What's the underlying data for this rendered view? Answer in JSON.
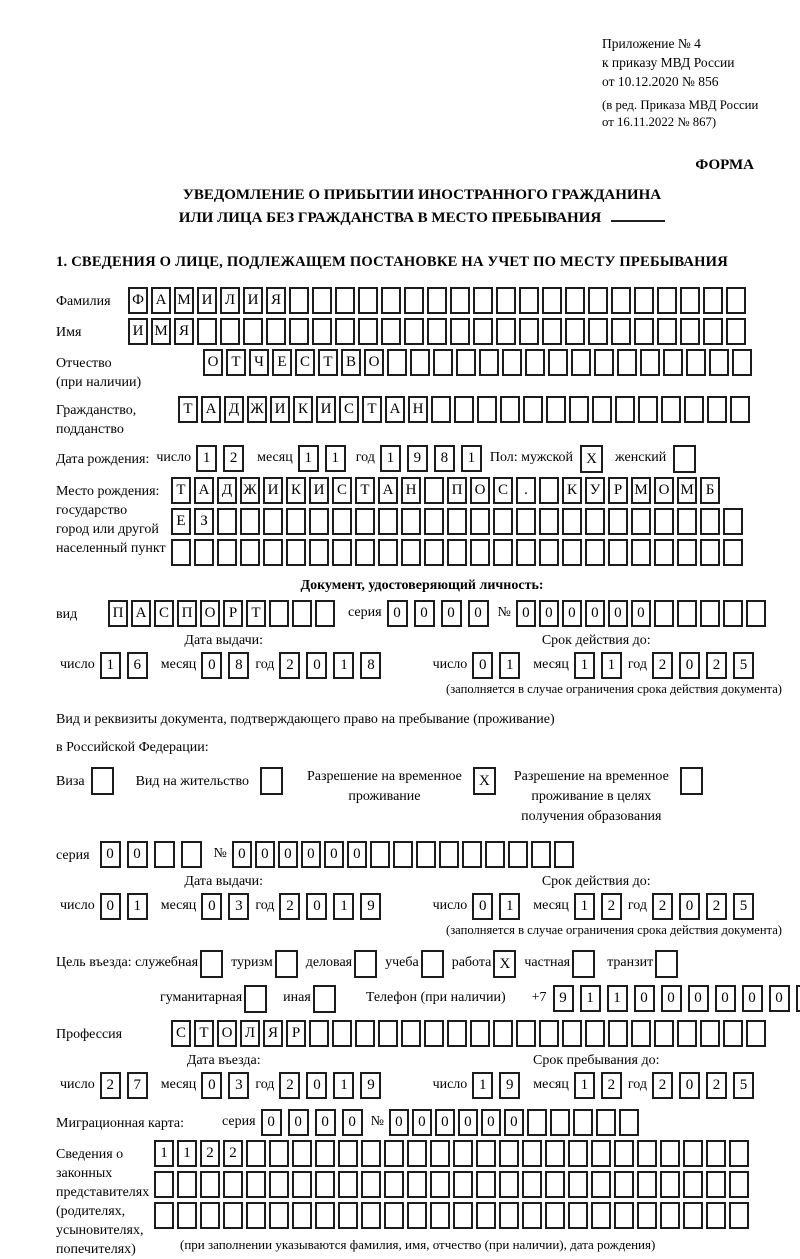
{
  "meta": {
    "appendix_lines": [
      "Приложение № 4",
      "к приказу МВД России",
      "от 10.12.2020 № 856"
    ],
    "edition_lines": [
      "(в ред. Приказа МВД России",
      "от 16.11.2022 № 867)"
    ],
    "forma_label": "ФОРМА"
  },
  "title": {
    "line1": "УВЕДОМЛЕНИЕ О ПРИБЫТИИ ИНОСТРАННОГО ГРАЖДАНИНА",
    "line2": "ИЛИ ЛИЦА БЕЗ ГРАЖДАНСТВА В МЕСТО ПРЕБЫВАНИЯ"
  },
  "section1": {
    "heading": "1. СВЕДЕНИЯ О ЛИЦЕ, ПОДЛЕЖАЩЕМ ПОСТАНОВКЕ НА УЧЕТ ПО МЕСТУ ПРЕБЫВАНИЯ",
    "surname": {
      "label": "Фамилия",
      "value": "ФАМИЛИЯ",
      "count": 27
    },
    "firstname": {
      "label": "Имя",
      "value": "ИМЯ",
      "count": 27
    },
    "patronymic": {
      "label_line1": "Отчество",
      "label_line2": "(при наличии)",
      "value": "ОТЧЕСТВО",
      "count": 24
    },
    "citizenship": {
      "label_line1": "Гражданство,",
      "label_line2": "подданство",
      "value": "ТАДЖИКИСТАН",
      "count": 25
    },
    "birth": {
      "label": "Дата рождения:",
      "day_label": "число",
      "day": {
        "value": "12",
        "count": 2
      },
      "month_label": "месяц",
      "month": {
        "value": "11",
        "count": 2
      },
      "year_label": "год",
      "year": {
        "value": "1981",
        "count": 4
      },
      "sex_male_label": "Пол: мужской",
      "sex_male": "X",
      "sex_female_label": "женский",
      "sex_female": ""
    },
    "birthplace": {
      "label_lines": [
        "Место рождения:",
        "государство",
        "город или другой",
        "населенный пункт"
      ],
      "row1": {
        "value": "ТАДЖИКИСТАН ПОС. КУРМОМБ",
        "count": 24
      },
      "row2": {
        "value": "ЕЗ",
        "count": 25
      },
      "row3": {
        "value": "",
        "count": 25
      }
    },
    "identity_doc": {
      "heading": "Документ, удостоверяющий личность:",
      "type_label": "вид",
      "type": {
        "value": "ПАСПОРТ",
        "count": 10
      },
      "series_label": "серия",
      "series": {
        "value": "0000",
        "count": 4
      },
      "number_label": "№",
      "number": {
        "value": "000000",
        "count": 11
      },
      "issue_heading": "Дата выдачи:",
      "expiry_heading": "Срок действия до:",
      "issue": {
        "day_label": "число",
        "day": {
          "value": "16",
          "count": 2
        },
        "month_label": "месяц",
        "month": {
          "value": "08",
          "count": 2
        },
        "year_label": "год",
        "year": {
          "value": "2018",
          "count": 4
        }
      },
      "expiry": {
        "day_label": "число",
        "day": {
          "value": "01",
          "count": 2
        },
        "month_label": "месяц",
        "month": {
          "value": "11",
          "count": 2
        },
        "year_label": "год",
        "year": {
          "value": "2025",
          "count": 4
        }
      },
      "expiry_note": "(заполняется в случае ограничения срока действия документа)"
    },
    "residence_doc": {
      "intro_line1": "Вид и реквизиты документа, подтверждающего право на пребывание (проживание)",
      "intro_line2": "в Российской Федерации:",
      "visa_label": "Виза",
      "visa": "",
      "residence_permit_label": "Вид на жительство",
      "residence_permit": "",
      "temp_permit_label_line1": "Разрешение на временное",
      "temp_permit_label_line2": "проживание",
      "temp_permit": "X",
      "edu_permit_label_line1": "Разрешение на временное",
      "edu_permit_label_line2": "проживание в целях",
      "edu_permit_label_line3": "получения образования",
      "edu_permit": "",
      "series_label": "серия",
      "series": {
        "value": "00",
        "count": 4
      },
      "number_label": "№",
      "number": {
        "value": "000000",
        "count": 15
      },
      "issue_heading": "Дата выдачи:",
      "expiry_heading": "Срок действия до:",
      "issue": {
        "day_label": "число",
        "day": {
          "value": "01",
          "count": 2
        },
        "month_label": "месяц",
        "month": {
          "value": "03",
          "count": 2
        },
        "year_label": "год",
        "year": {
          "value": "2019",
          "count": 4
        }
      },
      "expiry": {
        "day_label": "число",
        "day": {
          "value": "01",
          "count": 2
        },
        "month_label": "месяц",
        "month": {
          "value": "12",
          "count": 2
        },
        "year_label": "год",
        "year": {
          "value": "2025",
          "count": 4
        }
      },
      "expiry_note": "(заполняется в случае ограничения срока действия документа)"
    },
    "visit_purpose": {
      "label": "Цель въезда: служебная",
      "official": "",
      "tourism_label": "туризм",
      "tourism": "",
      "business_label": "деловая",
      "business": "",
      "study_label": "учеба",
      "study": "",
      "work_label": "работа",
      "work": "X",
      "private_label": "частная",
      "private": "",
      "transit_label": "транзит",
      "transit": "",
      "humanitarian_label": "гуманитарная",
      "humanitarian": "",
      "other_label": "иная",
      "other": "",
      "phone_label": "Телефон (при наличии)",
      "phone_prefix": "+7",
      "phone": {
        "value": "911000000",
        "count": 10
      }
    },
    "profession": {
      "label": "Профессия",
      "value": "СТОЛЯР",
      "count": 26
    },
    "entry": {
      "issue_heading": "Дата въезда:",
      "expiry_heading": "Срок пребывания до:",
      "issue": {
        "day_label": "число",
        "day": {
          "value": "27",
          "count": 2
        },
        "month_label": "месяц",
        "month": {
          "value": "03",
          "count": 2
        },
        "year_label": "год",
        "year": {
          "value": "2019",
          "count": 4
        }
      },
      "expiry": {
        "day_label": "число",
        "day": {
          "value": "19",
          "count": 2
        },
        "month_label": "месяц",
        "month": {
          "value": "12",
          "count": 2
        },
        "year_label": "год",
        "year": {
          "value": "2025",
          "count": 4
        }
      }
    },
    "migration_card": {
      "label": "Миграционная карта:",
      "series_label": "серия",
      "series": {
        "value": "0000",
        "count": 4
      },
      "number_label": "№",
      "number": {
        "value": "000000",
        "count": 11
      }
    },
    "representatives": {
      "label_lines": [
        "Сведения о",
        "законных",
        "представителях",
        "(родителях,",
        "усыновителях,",
        "попечителях)"
      ],
      "row1": {
        "value": "1122",
        "count": 26
      },
      "row2": {
        "value": "",
        "count": 26
      },
      "row3": {
        "value": "",
        "count": 26
      },
      "note": "(при заполнении указываются фамилия, имя, отчество (при наличии), дата рождения)"
    }
  }
}
